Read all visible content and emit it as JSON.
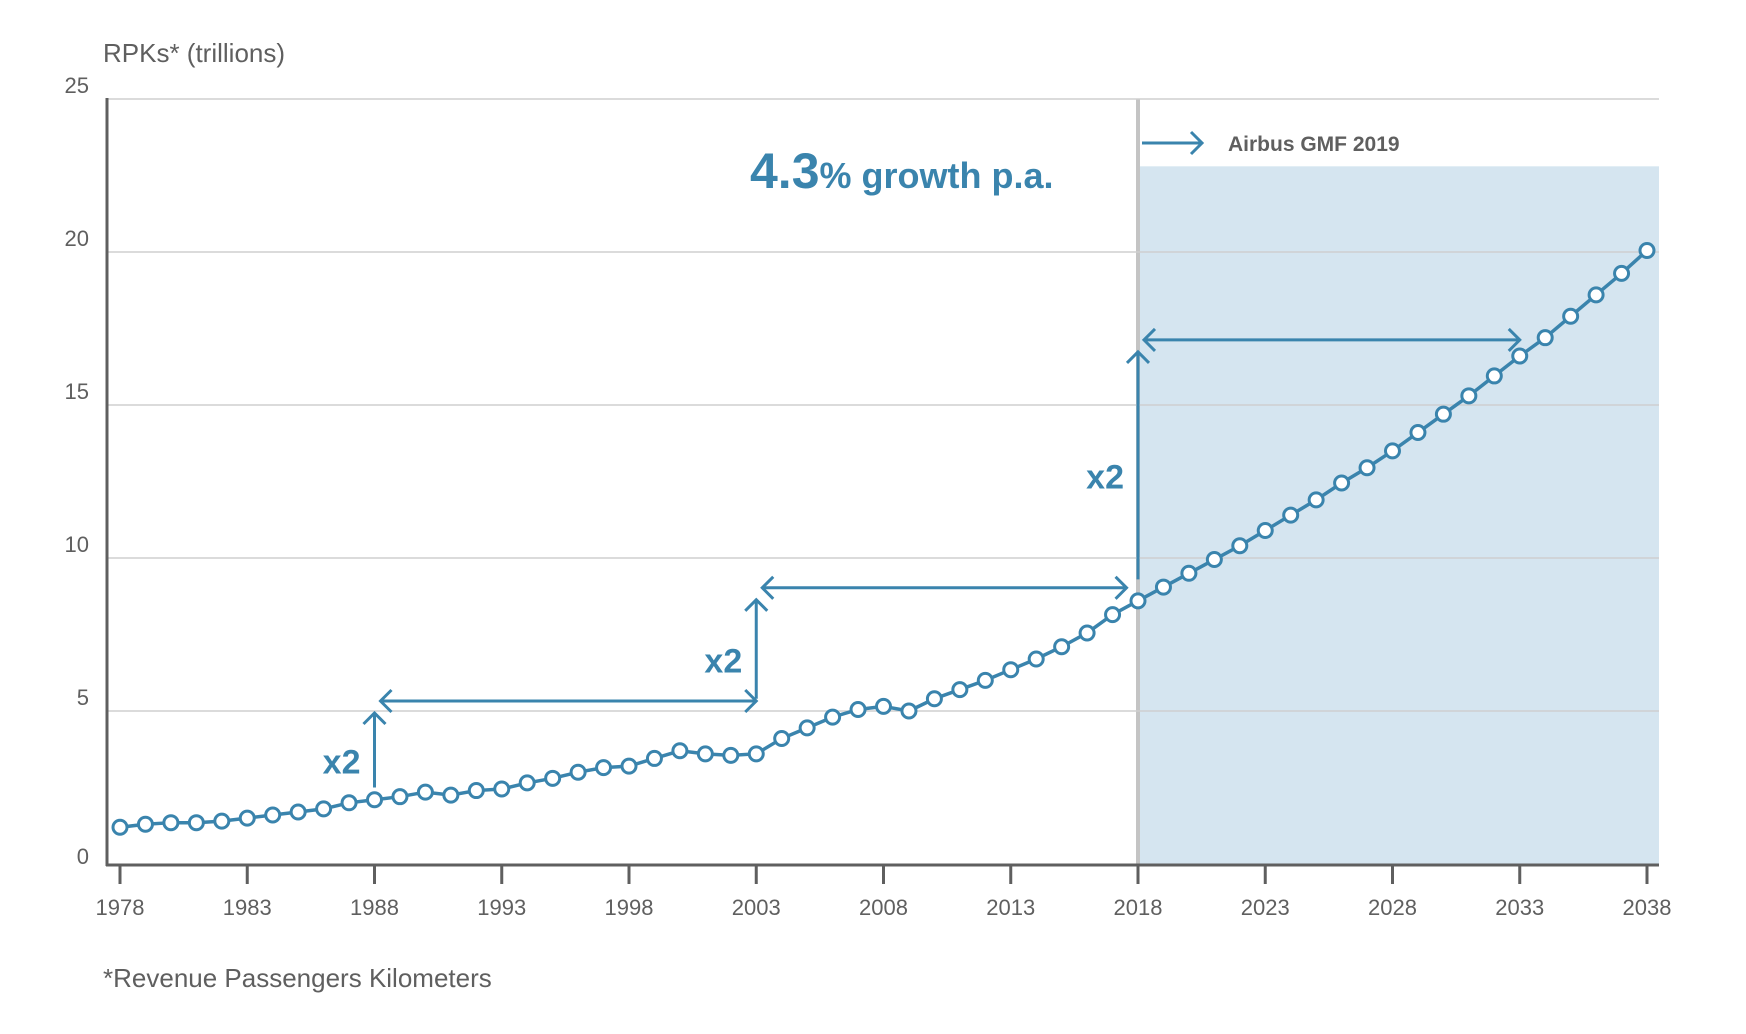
{
  "chart_data": {
    "type": "line",
    "title": "",
    "ylabel": "RPKs* (trillions)",
    "xlabel": "",
    "footnote": "*Revenue Passengers Kilometers",
    "ylim": [
      0,
      25
    ],
    "xlim": [
      1978,
      2038
    ],
    "yticks": [
      "0",
      "5",
      "10",
      "15",
      "20",
      "25"
    ],
    "xticks": [
      "1978",
      "1983",
      "1988",
      "1993",
      "1998",
      "2003",
      "2008",
      "2013",
      "2018",
      "2023",
      "2028",
      "2033",
      "2038"
    ],
    "grid": true,
    "series": [
      {
        "name": "RPKs",
        "x": [
          1978,
          1979,
          1980,
          1981,
          1982,
          1983,
          1984,
          1985,
          1986,
          1987,
          1988,
          1989,
          1990,
          1991,
          1992,
          1993,
          1994,
          1995,
          1996,
          1997,
          1998,
          1999,
          2000,
          2001,
          2002,
          2003,
          2004,
          2005,
          2006,
          2007,
          2008,
          2009,
          2010,
          2011,
          2012,
          2013,
          2014,
          2015,
          2016,
          2017,
          2018,
          2019,
          2020,
          2021,
          2022,
          2023,
          2024,
          2025,
          2026,
          2027,
          2028,
          2029,
          2030,
          2031,
          2032,
          2033,
          2034,
          2035,
          2036,
          2037,
          2038
        ],
        "values": [
          1.2,
          1.3,
          1.35,
          1.35,
          1.4,
          1.5,
          1.6,
          1.7,
          1.8,
          2.0,
          2.1,
          2.2,
          2.35,
          2.25,
          2.4,
          2.45,
          2.65,
          2.8,
          3.0,
          3.15,
          3.2,
          3.45,
          3.7,
          3.6,
          3.55,
          3.6,
          4.1,
          4.45,
          4.8,
          5.05,
          5.15,
          5.0,
          5.4,
          5.7,
          6.0,
          6.35,
          6.7,
          7.1,
          7.55,
          8.15,
          8.6,
          9.05,
          9.5,
          9.95,
          10.4,
          10.9,
          11.4,
          11.9,
          12.45,
          12.95,
          13.5,
          14.1,
          14.7,
          15.3,
          15.95,
          16.6,
          17.2,
          17.9,
          18.6,
          19.3,
          20.05
        ]
      }
    ],
    "forecast_region": {
      "from": 2018,
      "to": 2038,
      "top_value": 22.8,
      "label": "Airbus GMF 2019"
    },
    "annotations": {
      "growth_number": "4.3",
      "growth_text": "% growth p.a.",
      "doubling_label": "x2",
      "doublings": [
        {
          "start_year": 1988,
          "end_year": 2003,
          "from_value": 2.5,
          "to_value": 5.0
        },
        {
          "start_year": 2003,
          "end_year": 2017,
          "from_value": 5.4,
          "to_value": 8.7
        },
        {
          "start_year": 2018,
          "end_year": 2033,
          "from_value": 9.3,
          "to_value": 16.8
        }
      ]
    },
    "colors": {
      "line": "#3a84ad",
      "forecast_fill": "#d5e5f0",
      "divider": "#c4c4c4",
      "text": "#5f5f5f",
      "grid": "#cfcfcf",
      "axis": "#5f5f5f"
    }
  }
}
